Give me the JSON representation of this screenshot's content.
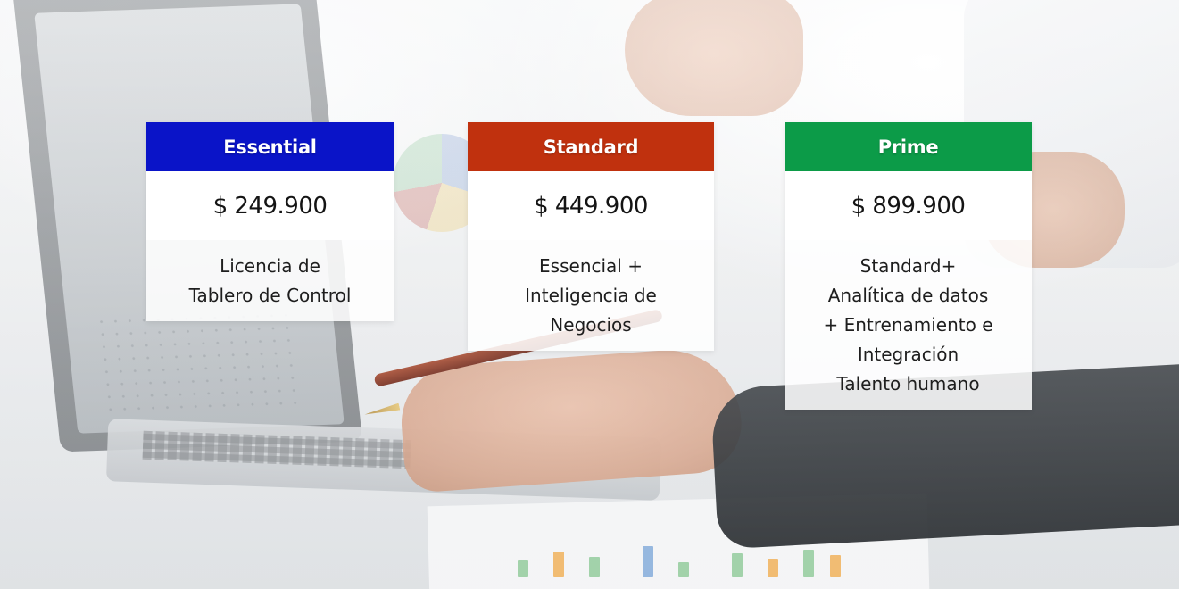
{
  "plans": [
    {
      "name": "Essential",
      "header_color": "#0a14c8",
      "price": "$ 249.900",
      "features": [
        "Licencia de",
        "Tablero de Control"
      ]
    },
    {
      "name": "Standard",
      "header_color": "#c0310e",
      "price": "$ 449.900",
      "features": [
        "Essencial +",
        "Inteligencia de",
        "Negocios"
      ]
    },
    {
      "name": "Prime",
      "header_color": "#0c9b48",
      "price": "$ 899.900",
      "features": [
        "Standard+",
        "Analítica de datos",
        "+ Entrenamiento e",
        "Integración",
        "Talento humano"
      ]
    }
  ]
}
